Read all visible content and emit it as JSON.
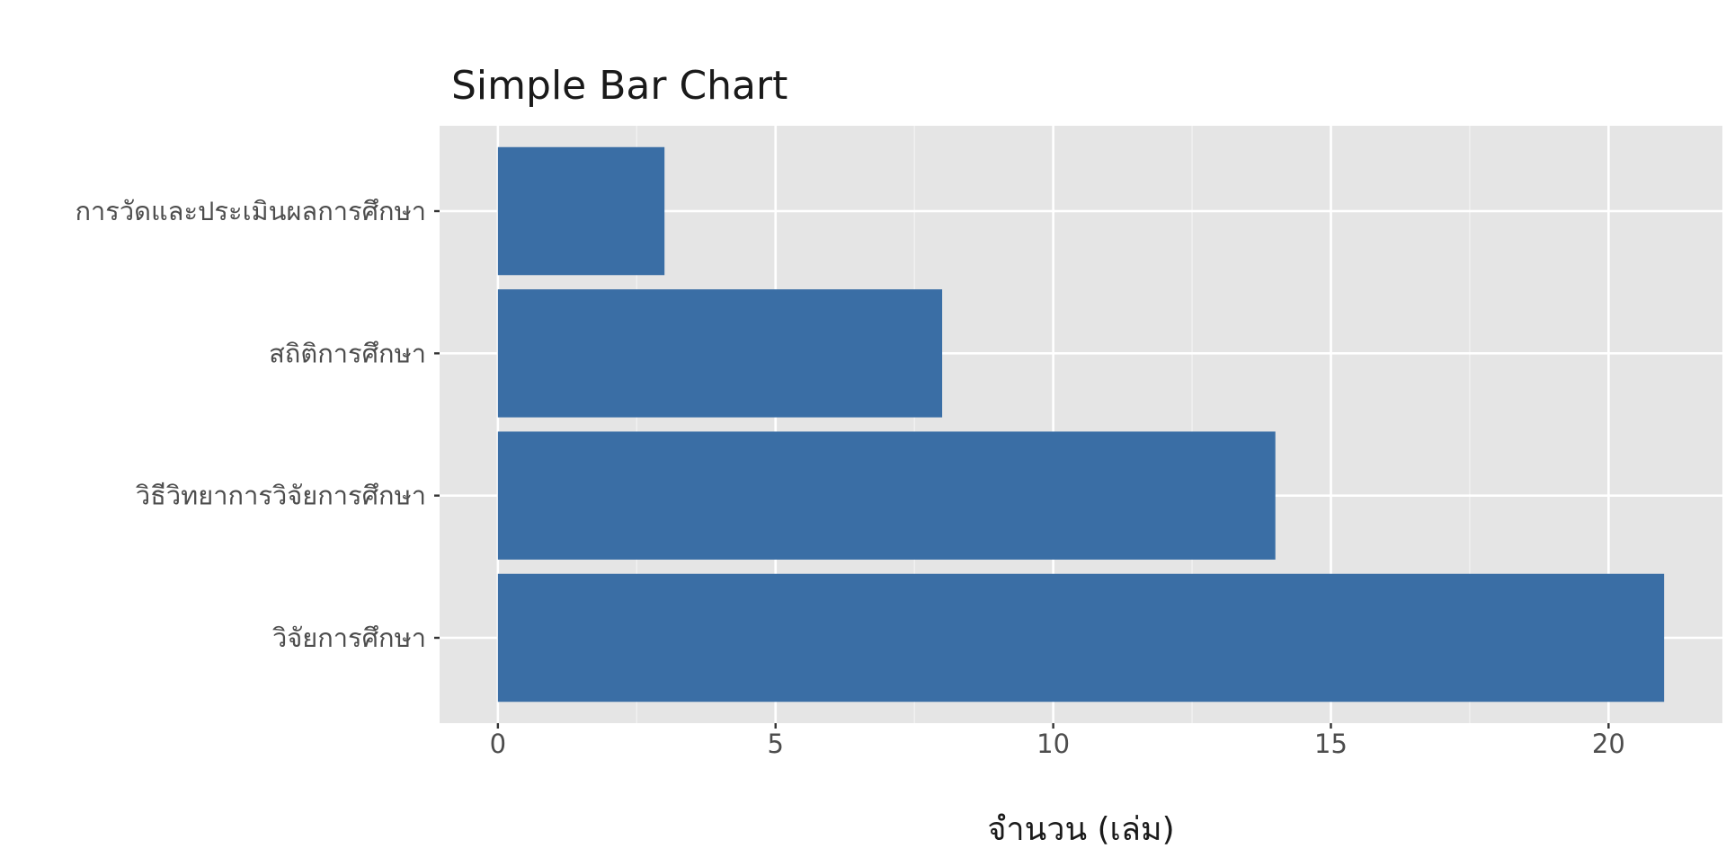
{
  "chart_data": {
    "type": "bar",
    "orientation": "horizontal",
    "title": "Simple Bar Chart",
    "xlabel": "จำนวน (เล่ม)",
    "ylabel": "",
    "categories": [
      "การวัดและประเมินผลการศึกษา",
      "สถิติการศึกษา",
      "วิธีวิทยาการวิจัยการศึกษา",
      "วิจัยการศึกษา"
    ],
    "values": [
      3,
      8,
      14,
      21
    ],
    "xlim": [
      -1.05,
      22.05
    ],
    "x_ticks": [
      0,
      5,
      10,
      15,
      20
    ],
    "x_tick_labels": [
      "0",
      "5",
      "10",
      "15",
      "20"
    ],
    "grid": true,
    "legend": "none",
    "colors": {
      "bar": "#3a6ea5",
      "panel_background": "#e5e5e5",
      "grid_major": "#ffffff",
      "grid_minor": "#f2f2f2",
      "text": "#1a1a1a",
      "tick_text": "#4d4d4d",
      "tick_mark": "#333333"
    }
  }
}
